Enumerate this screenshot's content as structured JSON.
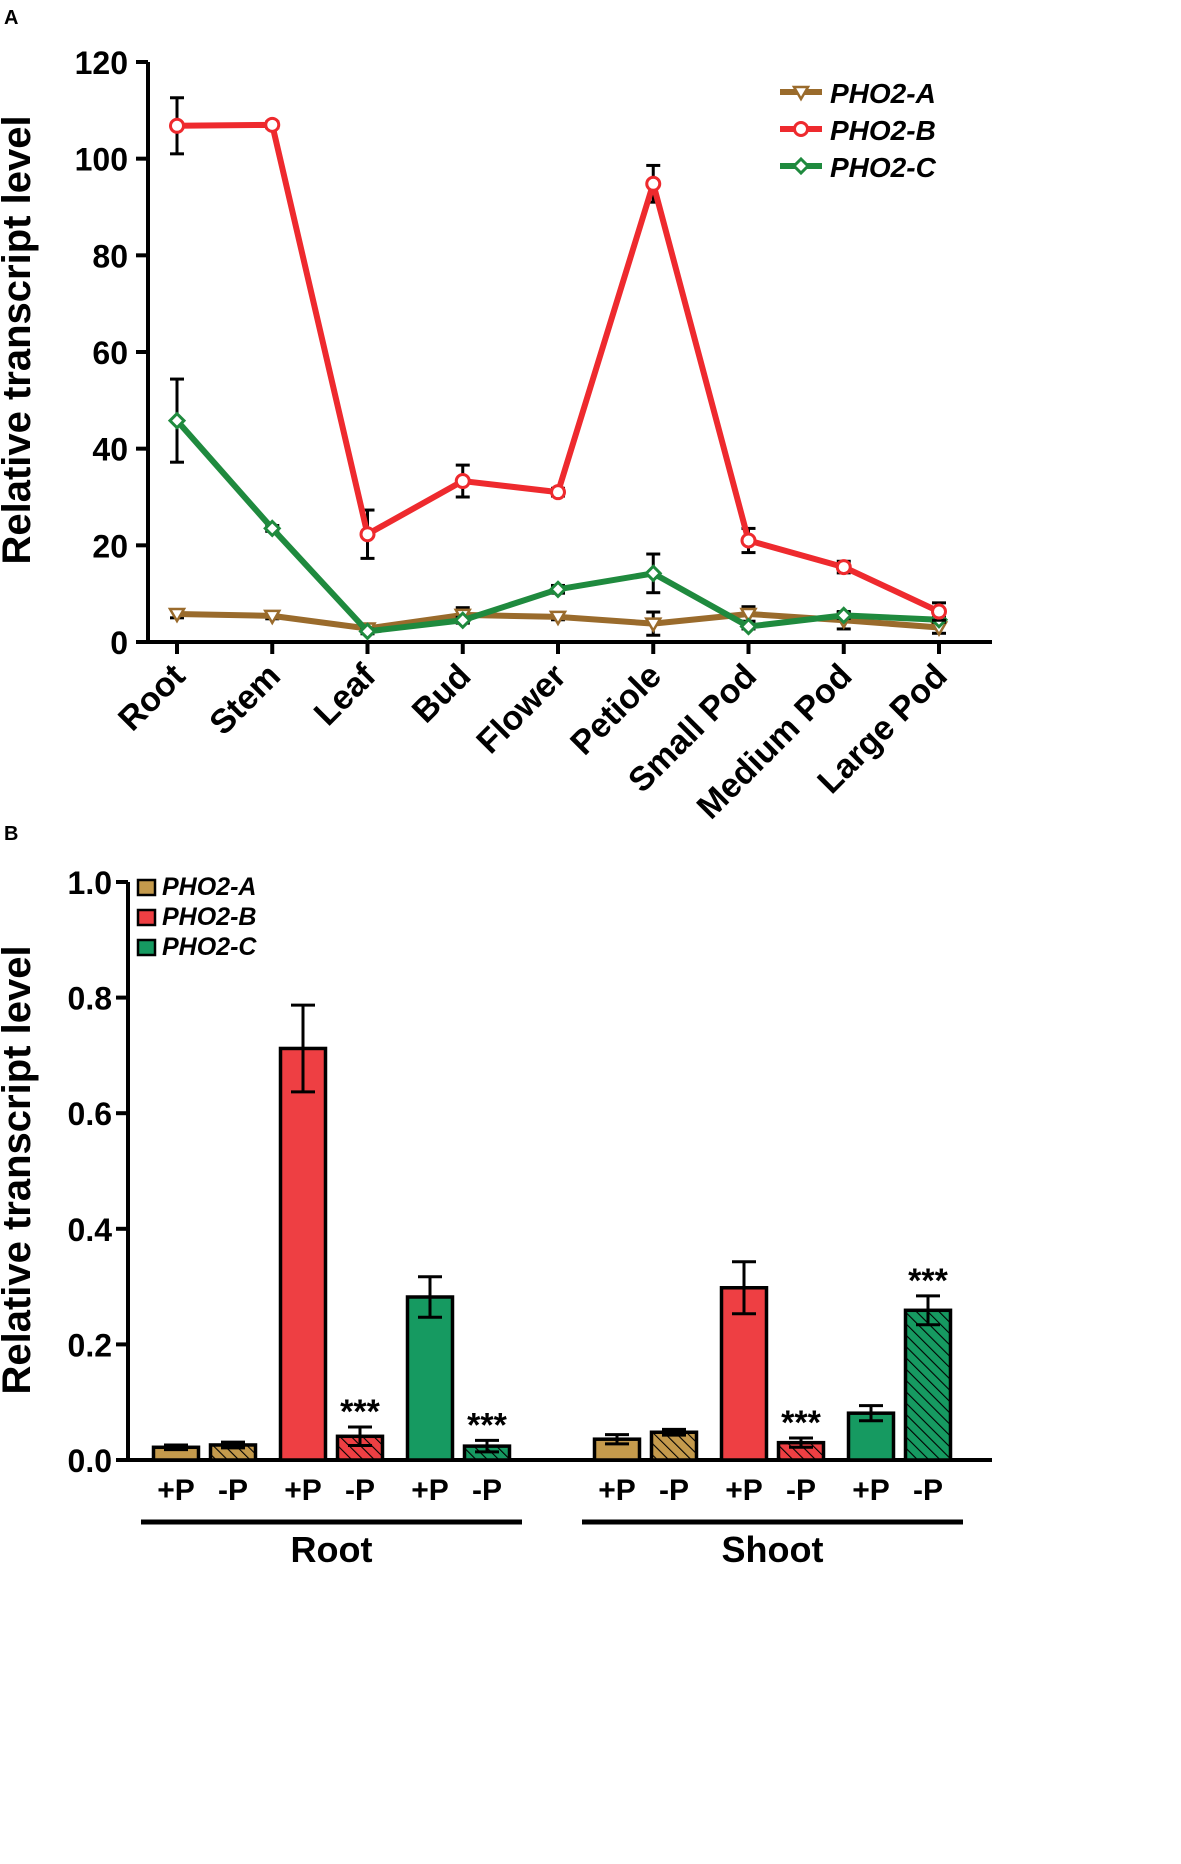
{
  "colors": {
    "pho2a_line": "#9A6B2C",
    "pho2b_line": "#EE2A2E",
    "pho2c_line": "#1F8A3E",
    "pho2a_bar": "#C49A4C",
    "pho2b_bar": "#EE3F43",
    "pho2c_bar": "#169A61",
    "axis": "#000000"
  },
  "chart_data": [
    {
      "panel_label": "A",
      "type": "line",
      "ylabel": "Relative transcript level",
      "xlabel": "",
      "ylim": [
        0,
        120
      ],
      "yticks": [
        "0",
        "20",
        "40",
        "60",
        "80",
        "100",
        "120"
      ],
      "categories": [
        "Root",
        "Stem",
        "Leaf",
        "Bud",
        "Flower",
        "Petiole",
        "Small Pod",
        "Medium Pod",
        "Large Pod"
      ],
      "legend_position": "top-right",
      "series": [
        {
          "name": "PHO2-A",
          "marker": "triangle-down",
          "values": [
            5.8,
            5.4,
            2.8,
            5.6,
            5.2,
            3.8,
            5.8,
            4.5,
            3.0
          ],
          "errors": [
            0.8,
            0.6,
            0.8,
            1.5,
            0.6,
            2.4,
            1.5,
            1.8,
            1.2
          ]
        },
        {
          "name": "PHO2-B",
          "marker": "circle",
          "values": [
            106.8,
            107.0,
            22.3,
            33.3,
            31.0,
            94.8,
            21.0,
            15.5,
            6.3
          ],
          "errors": [
            5.8,
            0.6,
            5.0,
            3.3,
            0.8,
            3.8,
            2.5,
            1.2,
            1.8
          ]
        },
        {
          "name": "PHO2-C",
          "marker": "diamond",
          "values": [
            45.8,
            23.5,
            2.2,
            4.5,
            10.9,
            14.2,
            3.2,
            5.5,
            4.6
          ],
          "errors": [
            8.6,
            0.6,
            0.5,
            0.6,
            0.8,
            4.0,
            0.5,
            0.6,
            0.5
          ]
        }
      ]
    },
    {
      "panel_label": "B",
      "type": "bar",
      "ylabel": "Relative transcript level",
      "xlabel": "",
      "ylim": [
        0,
        1.0
      ],
      "yticks": [
        "0.0",
        "0.2",
        "0.4",
        "0.6",
        "0.8",
        "1.0"
      ],
      "groups": [
        "Root",
        "Shoot"
      ],
      "conditions": [
        "+P",
        "-P"
      ],
      "legend_position": "top-left",
      "series": [
        {
          "name": "PHO2-A",
          "root": [
            0.022,
            0.026
          ],
          "root_err": [
            0.004,
            0.005
          ],
          "shoot": [
            0.036,
            0.048
          ],
          "shoot_err": [
            0.008,
            0.005
          ],
          "root_sig": [
            "",
            ""
          ],
          "shoot_sig": [
            "",
            ""
          ]
        },
        {
          "name": "PHO2-B",
          "root": [
            0.712,
            0.041
          ],
          "root_err": [
            0.075,
            0.016
          ],
          "shoot": [
            0.298,
            0.03
          ],
          "shoot_err": [
            0.045,
            0.008
          ],
          "root_sig": [
            "",
            "***"
          ],
          "shoot_sig": [
            "",
            "***"
          ]
        },
        {
          "name": "PHO2-C",
          "root": [
            0.282,
            0.024
          ],
          "root_err": [
            0.035,
            0.01
          ],
          "shoot": [
            0.081,
            0.259
          ],
          "shoot_err": [
            0.013,
            0.025
          ],
          "root_sig": [
            "",
            "***"
          ],
          "shoot_sig": [
            "",
            "***"
          ]
        }
      ]
    }
  ]
}
